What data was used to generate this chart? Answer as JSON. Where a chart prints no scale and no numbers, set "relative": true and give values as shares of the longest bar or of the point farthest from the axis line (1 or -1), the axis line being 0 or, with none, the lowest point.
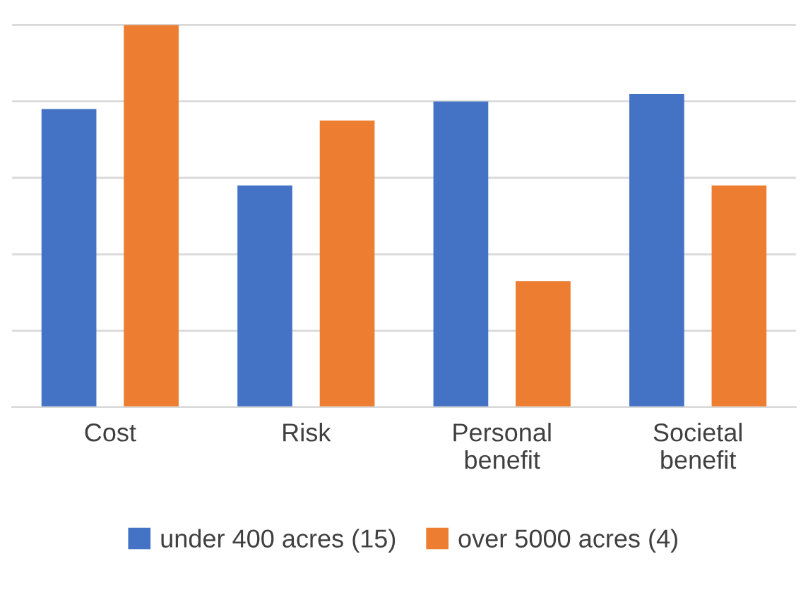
{
  "chart_data": {
    "type": "bar",
    "relative": true,
    "categories": [
      "Cost",
      "Risk",
      "Personal\nbenefit",
      "Societal\nbenefit"
    ],
    "series": [
      {
        "name": "under 400 acres (15)",
        "color": "#4472c4",
        "values": [
          0.78,
          0.58,
          0.8,
          0.82
        ]
      },
      {
        "name": "over 5000 acres (4)",
        "color": "#ed7d31",
        "values": [
          1,
          0.75,
          0.33,
          0.58
        ]
      }
    ],
    "grid": "y",
    "legend": "bottom"
  }
}
